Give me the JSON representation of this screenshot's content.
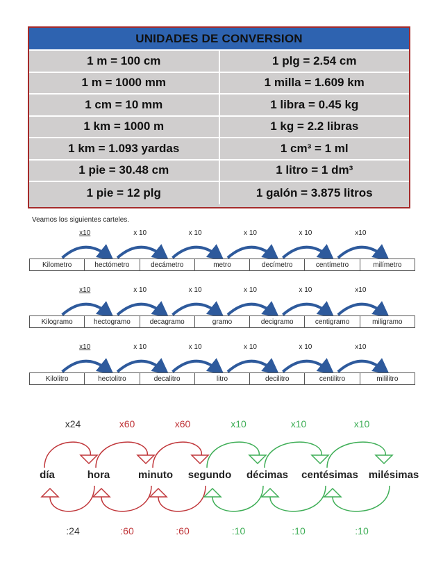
{
  "table": {
    "title": "UNIDADES DE CONVERSION",
    "rows": [
      {
        "left": "1 m = 100 cm",
        "right": "1 plg = 2.54 cm"
      },
      {
        "left": "1 m = 1000 mm",
        "right": "1 milla = 1.609 km"
      },
      {
        "left": "1 cm = 10 mm",
        "right": "1 libra = 0.45 kg"
      },
      {
        "left": "1 km = 1000 m",
        "right": "1 kg = 2.2 libras"
      },
      {
        "left": "1 km = 1.093 yardas",
        "right": "1 cm³ =  1 ml"
      },
      {
        "left": "1 pie = 30.48 cm",
        "right": "1 litro = 1 dm³"
      },
      {
        "left": "1 pie = 12 plg",
        "right": "1 galón = 3.875 litros"
      }
    ]
  },
  "intro": "Veamos los siguientes carteles.",
  "length": {
    "multipliers": [
      "x10",
      "x 10",
      "x 10",
      "x 10",
      "x 10",
      "x10"
    ],
    "units": [
      "Kilometro",
      "hectómetro",
      "decámetro",
      "metro",
      "decímetro",
      "centímetro",
      "milímetro"
    ]
  },
  "mass": {
    "multipliers": [
      "x10",
      "x 10",
      "x 10",
      "x 10",
      "x 10",
      "x10"
    ],
    "units": [
      "Kilogramo",
      "hectogramo",
      "decagramo",
      "gramo",
      "decigramo",
      "centigramo",
      "miligramo"
    ]
  },
  "volume": {
    "multipliers": [
      "x10",
      "x 10",
      "x 10",
      "x 10",
      "x 10",
      "x10"
    ],
    "units": [
      "Kilolitro",
      "hectolitro",
      "decalitro",
      "litro",
      "decilitro",
      "centilitro",
      "mililitro"
    ]
  },
  "time": {
    "units": [
      "día",
      "hora",
      "minuto",
      "segundo",
      "décimas",
      "centésimas",
      "milésimas"
    ],
    "top": [
      "x24",
      "x60",
      "x60",
      "x10",
      "x10",
      "x10"
    ],
    "bottom": [
      ":24",
      ":60",
      ":60",
      ":10",
      ":10",
      ":10"
    ],
    "colors": {
      "red": "#c0363a",
      "green": "#3fae57",
      "arrow_blue": "#2e5a9c"
    }
  }
}
